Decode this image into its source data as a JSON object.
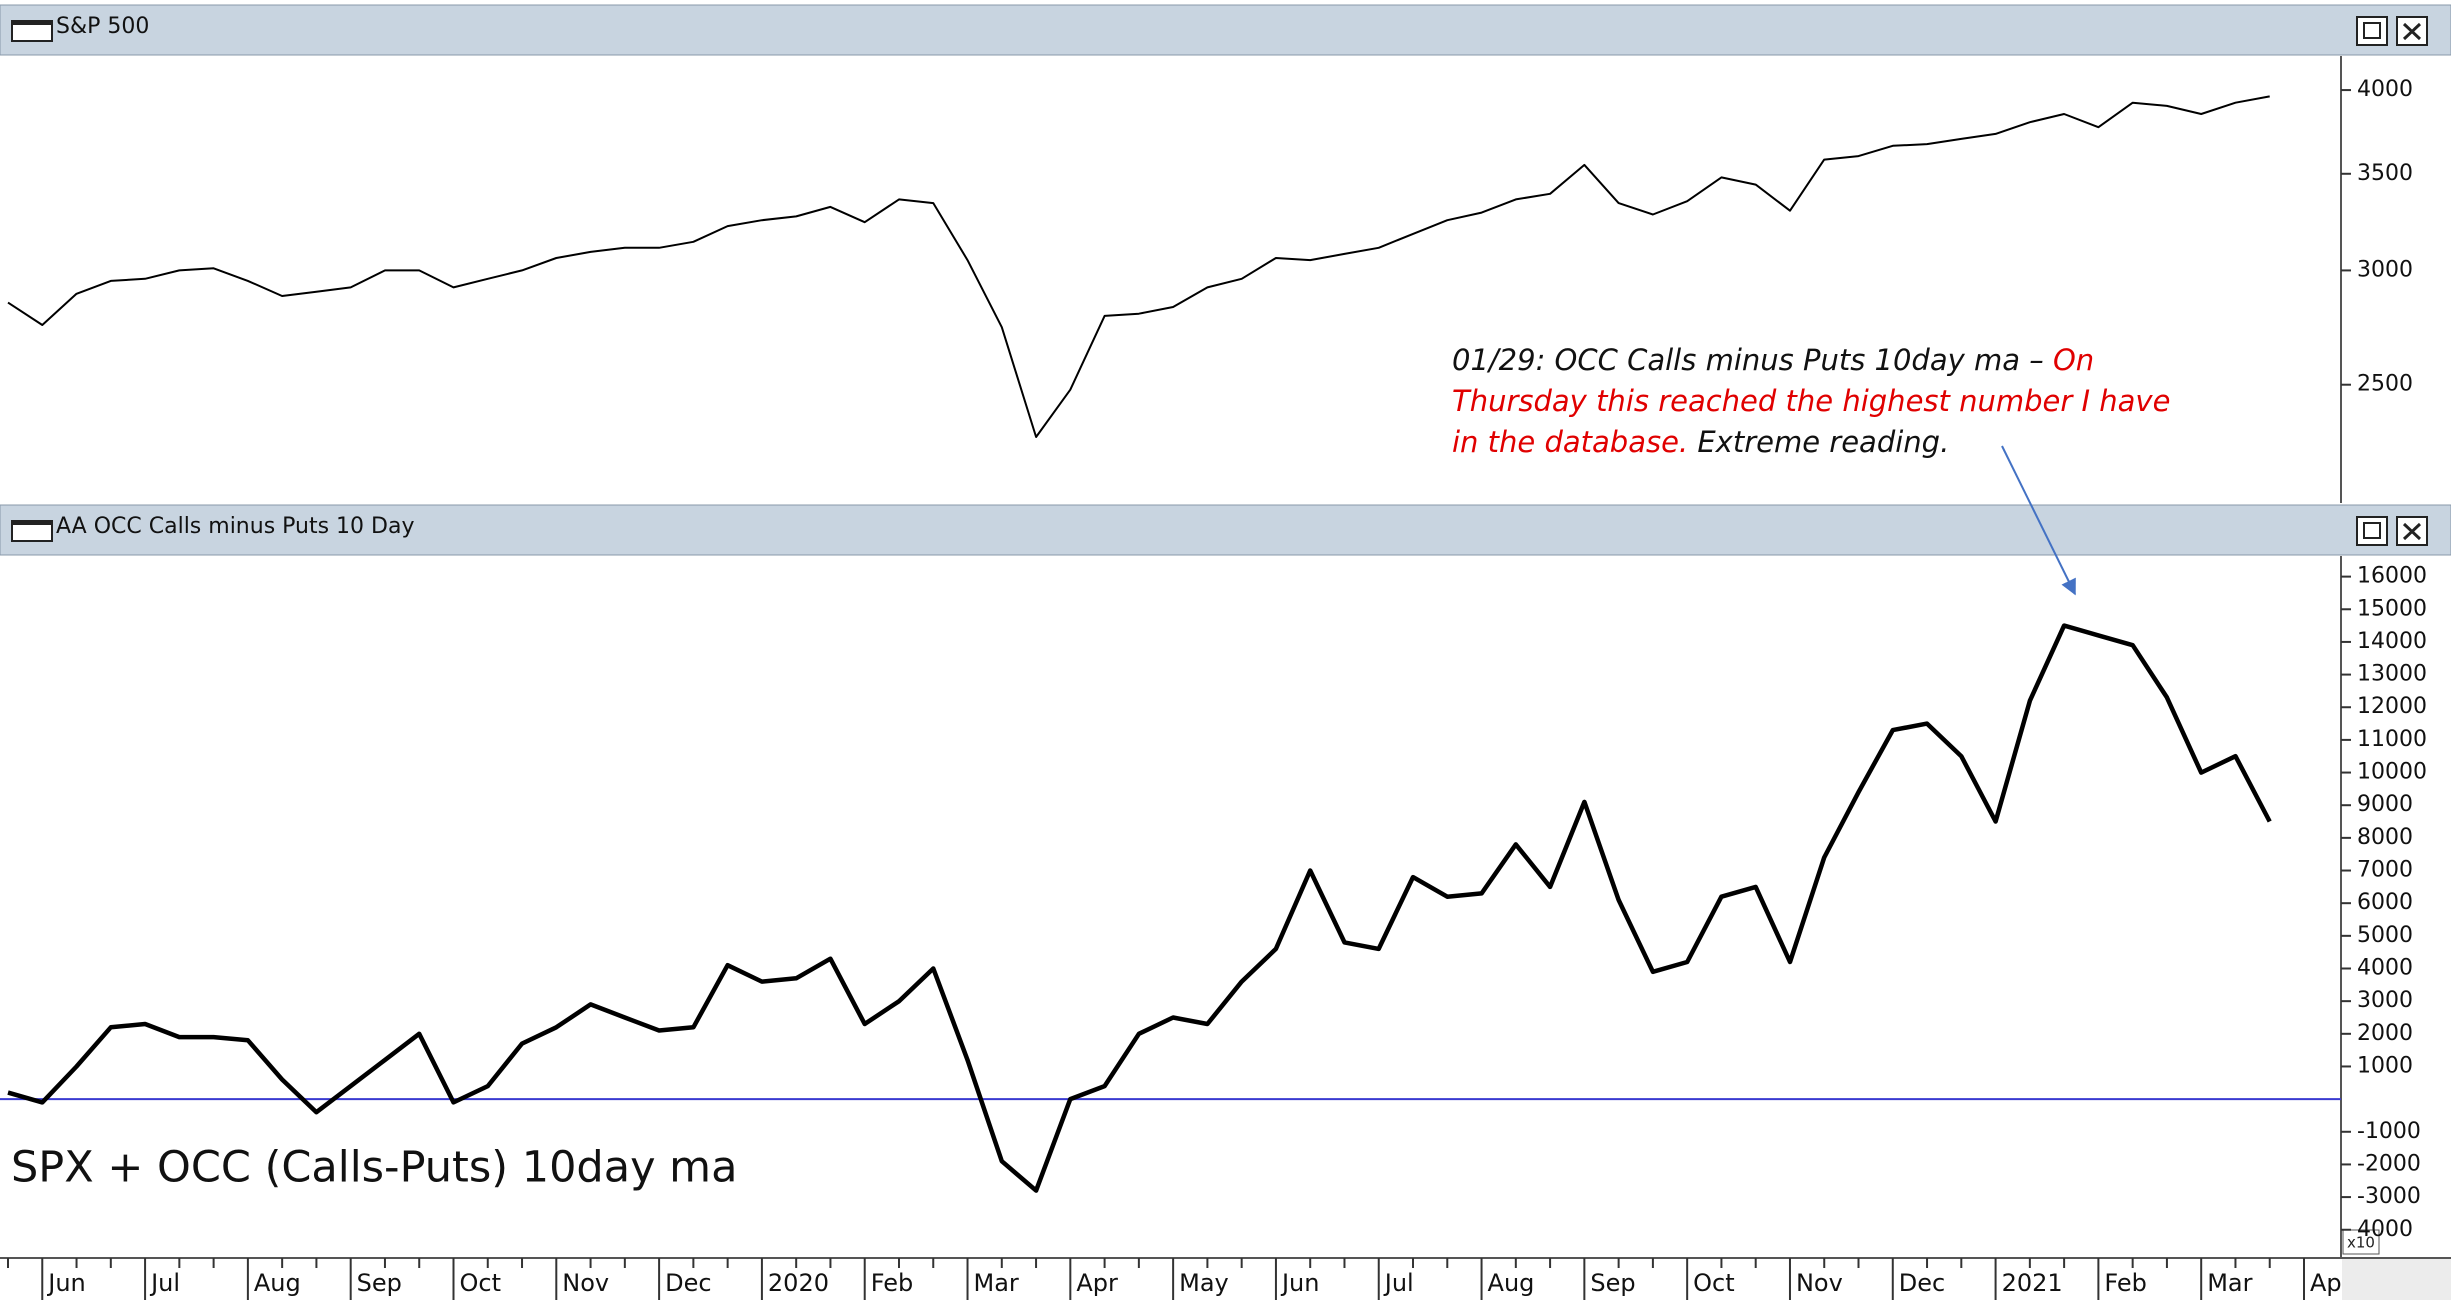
{
  "chart_data": [
    {
      "type": "line",
      "title": "S&P 500",
      "log": true,
      "color": "#000000",
      "categories": [
        null,
        "Jun",
        null,
        null,
        "Jul",
        null,
        null,
        "Aug",
        null,
        null,
        "Sep",
        null,
        null,
        "Oct",
        null,
        null,
        "Nov",
        null,
        null,
        "Dec",
        null,
        null,
        "2020",
        null,
        null,
        "Feb",
        null,
        null,
        "Mar",
        null,
        null,
        "Apr",
        null,
        null,
        "May",
        null,
        null,
        "Jun",
        null,
        null,
        "Jul",
        null,
        null,
        "Aug",
        null,
        null,
        "Sep",
        null,
        null,
        "Oct",
        null,
        null,
        "Nov",
        null,
        null,
        "Dec",
        null,
        null,
        "2021",
        null,
        null,
        "Feb",
        null,
        null,
        "Mar",
        null,
        null,
        "Ap"
      ],
      "values": [
        2850,
        2750,
        2890,
        2950,
        2960,
        3000,
        3010,
        2950,
        2880,
        2900,
        2920,
        3000,
        3000,
        2920,
        2960,
        3000,
        3060,
        3090,
        3110,
        3110,
        3140,
        3220,
        3250,
        3270,
        3320,
        3240,
        3360,
        3340,
        3050,
        2740,
        2300,
        2480,
        2790,
        2800,
        2830,
        2920,
        2960,
        3060,
        3050,
        3080,
        3110,
        3180,
        3250,
        3290,
        3360,
        3390,
        3550,
        3340,
        3280,
        3350,
        3480,
        3440,
        3300,
        3580,
        3600,
        3660,
        3670,
        3700,
        3730,
        3800,
        3850,
        3770,
        3920,
        3900,
        3850,
        3920,
        3960,
        null
      ],
      "ylim": [
        2080,
        4210
      ],
      "yticks": [
        2500,
        3000,
        3500,
        4000
      ]
    },
    {
      "type": "line",
      "title": "AA OCC Calls minus Puts 10 Day",
      "color": "#000000",
      "categories": [
        null,
        "Jun",
        null,
        null,
        "Jul",
        null,
        null,
        "Aug",
        null,
        null,
        "Sep",
        null,
        null,
        "Oct",
        null,
        null,
        "Nov",
        null,
        null,
        "Dec",
        null,
        null,
        "2020",
        null,
        null,
        "Feb",
        null,
        null,
        "Mar",
        null,
        null,
        "Apr",
        null,
        null,
        "May",
        null,
        null,
        "Jun",
        null,
        null,
        "Jul",
        null,
        null,
        "Aug",
        null,
        null,
        "Sep",
        null,
        null,
        "Oct",
        null,
        null,
        "Nov",
        null,
        null,
        "Dec",
        null,
        null,
        "2021",
        null,
        null,
        "Feb",
        null,
        null,
        "Mar",
        null,
        null,
        "Ap"
      ],
      "values": [
        200,
        -100,
        1000,
        2200,
        2300,
        1900,
        1900,
        1800,
        600,
        -400,
        400,
        1200,
        2000,
        -100,
        400,
        1700,
        2200,
        2900,
        2500,
        2100,
        2200,
        4100,
        3600,
        3700,
        4300,
        2300,
        3000,
        4000,
        1200,
        -1900,
        -2800,
        0,
        400,
        2000,
        2500,
        2300,
        3600,
        4600,
        7000,
        4800,
        4600,
        6800,
        6200,
        6300,
        7800,
        6500,
        9100,
        6100,
        3900,
        4200,
        6200,
        6500,
        4200,
        7400,
        9400,
        11300,
        11500,
        10500,
        8500,
        12200,
        14500,
        14200,
        13900,
        12300,
        10000,
        10500,
        8500,
        null
      ],
      "ylim": [
        -4620,
        16570
      ],
      "yticks": [
        {
          "value": -4000,
          "label": "4000"
        },
        -3000,
        -2000,
        -1000,
        1000,
        2000,
        3000,
        4000,
        5000,
        6000,
        7000,
        8000,
        9000,
        10000,
        11000,
        12000,
        13000,
        14000,
        15000,
        16000
      ],
      "reference_line": {
        "value": 0,
        "color": "#3a3ad0"
      },
      "axis_multiplier_label": "x10",
      "annotation": {
        "text": [
          "01/29: OCC Calls minus Puts 10day ma – ",
          "On Thursday this reached the highest number I have in the database.",
          " Extreme reading."
        ],
        "colors": [
          "#111111",
          "#e00000",
          "#111111"
        ],
        "arrow_color": "#4472c4"
      },
      "caption": "SPX + OCC (Calls-Puts) 10day ma"
    }
  ]
}
